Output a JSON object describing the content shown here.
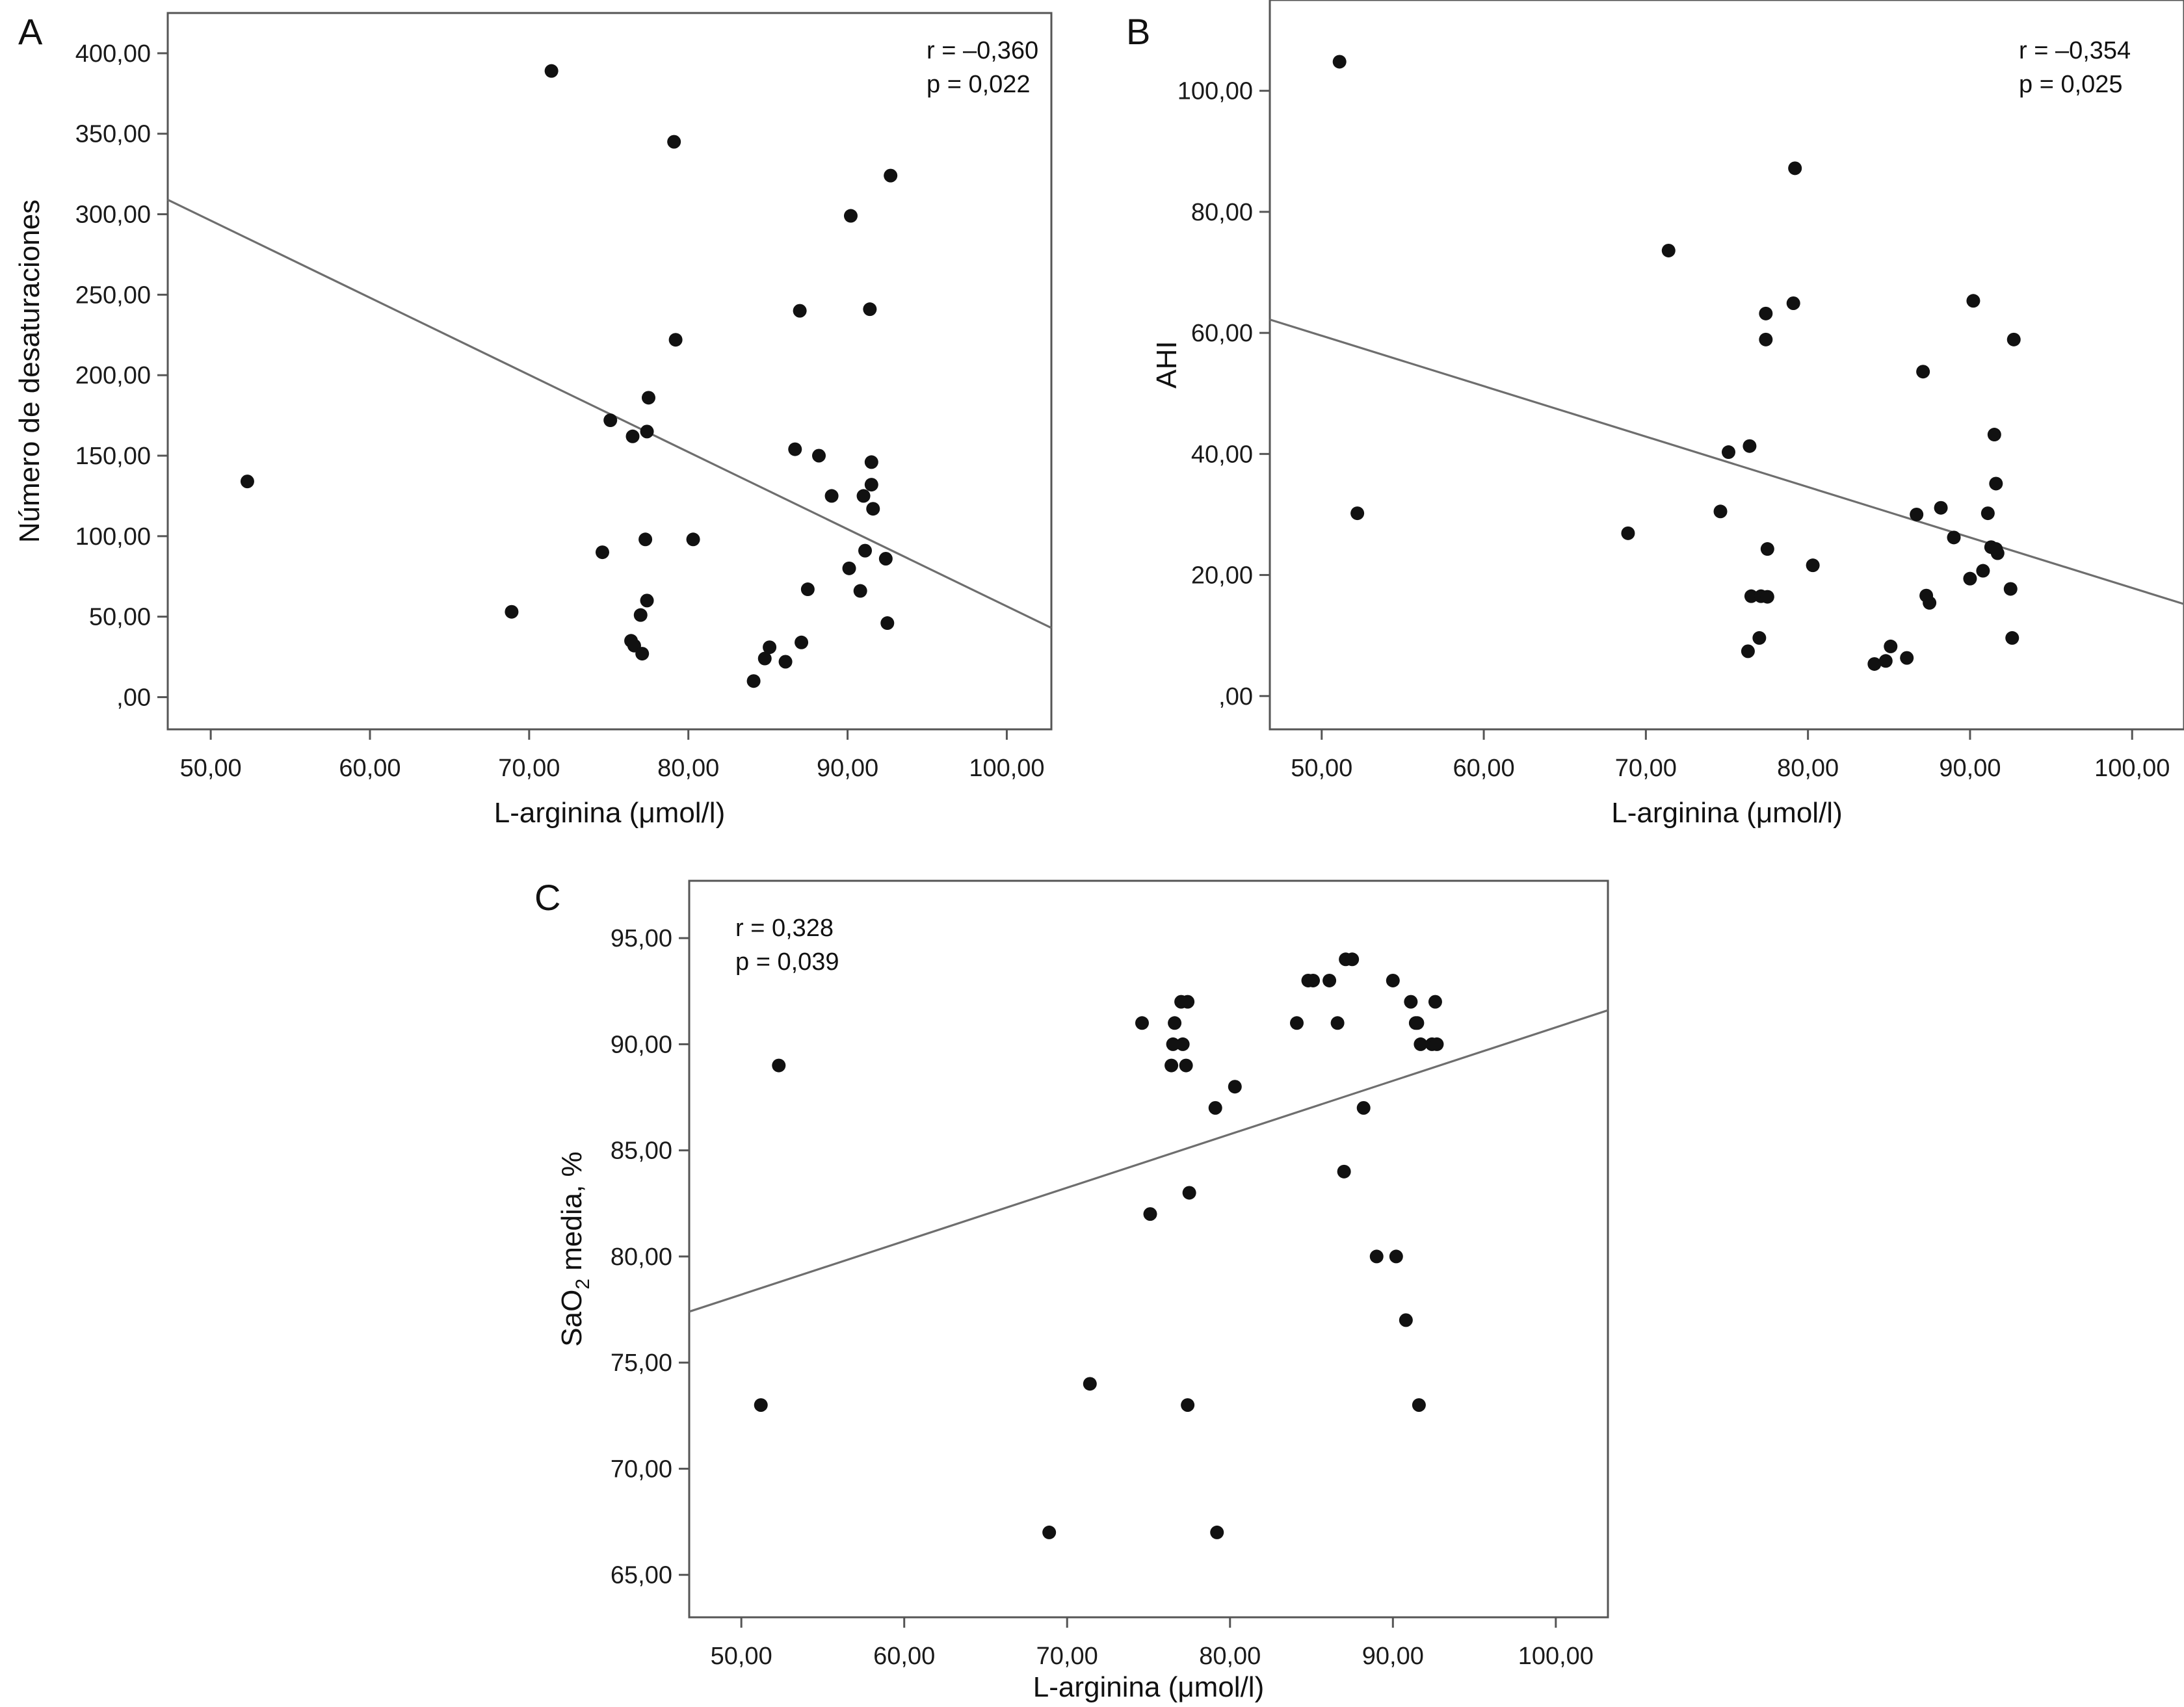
{
  "chart_data": [
    {
      "panel": "A",
      "type": "scatter",
      "xlabel": "L-arginina (μmol/l)",
      "ylabel": "Número de desaturaciones",
      "xlim": [
        47.3,
        102.8
      ],
      "ylim": [
        -20,
        425
      ],
      "xticks": [
        50,
        60,
        70,
        80,
        90,
        100
      ],
      "yticks": [
        0,
        50,
        100,
        150,
        200,
        250,
        300,
        350,
        400
      ],
      "xtick_labels": [
        "50,00",
        "60,00",
        "70,00",
        "80,00",
        "90,00",
        "100,00"
      ],
      "ytick_labels": [
        ",00",
        "50,00",
        "100,00",
        "150,00",
        "200,00",
        "250,00",
        "300,00",
        "350,00",
        "400,00"
      ],
      "stats": {
        "r": "r = –0,360",
        "p": "p = 0,022"
      },
      "fit_line": {
        "x": [
          47.3,
          102.8
        ],
        "y": [
          309,
          43
        ]
      },
      "points": {
        "x": [
          52.3,
          68.9,
          71.4,
          74.6,
          75.1,
          76.4,
          76.5,
          76.6,
          77.0,
          77.1,
          77.3,
          77.4,
          77.5,
          77.4,
          79.1,
          79.2,
          80.3,
          84.1,
          84.8,
          85.1,
          86.1,
          86.7,
          87.0,
          87.1,
          87.5,
          88.2,
          89.0,
          90.1,
          90.2,
          90.8,
          91.0,
          91.1,
          91.4,
          91.5,
          91.5,
          91.6,
          92.4,
          92.5,
          92.7
        ],
        "y": [
          134,
          53,
          389,
          90,
          172,
          35,
          162,
          32,
          51,
          27,
          98,
          60,
          186,
          165,
          345,
          222,
          98,
          10,
          24,
          31,
          22,
          154,
          240,
          34,
          67,
          150,
          125,
          80,
          299,
          66,
          125,
          91,
          241,
          146,
          132,
          117,
          86,
          46,
          324
        ]
      }
    },
    {
      "panel": "B",
      "type": "scatter",
      "xlabel": "L-arginina (μmol/l)",
      "ylabel": "AHI",
      "xlim": [
        46.8,
        103.2
      ],
      "ylim": [
        -5.5,
        115
      ],
      "xticks": [
        50,
        60,
        70,
        80,
        90,
        100
      ],
      "yticks": [
        0,
        20,
        40,
        60,
        80,
        100
      ],
      "xtick_labels": [
        "50,00",
        "60,00",
        "70,00",
        "80,00",
        "90,00",
        "100,00"
      ],
      "ytick_labels": [
        ",00",
        "20,00",
        "40,00",
        "60,00",
        "80,00",
        "100,00"
      ],
      "stats": {
        "r": "r = –0,354",
        "p": "p = 0,025"
      },
      "fit_line": {
        "x": [
          46.8,
          103.2
        ],
        "y": [
          62.2,
          15.2
        ]
      },
      "points": {
        "x": [
          51.1,
          52.2,
          68.9,
          71.4,
          74.6,
          75.1,
          76.3,
          76.4,
          76.5,
          77.0,
          77.1,
          77.4,
          77.4,
          77.5,
          77.5,
          79.1,
          79.2,
          80.3,
          84.1,
          84.8,
          85.1,
          86.1,
          86.7,
          87.1,
          87.3,
          87.5,
          88.2,
          89.0,
          90.0,
          90.2,
          90.8,
          91.1,
          91.3,
          91.5,
          91.6,
          91.7,
          91.6,
          92.5,
          92.6,
          92.7
        ],
        "y": [
          104.8,
          30.2,
          26.9,
          73.6,
          30.5,
          40.3,
          7.4,
          41.3,
          16.5,
          9.6,
          16.5,
          63.2,
          58.9,
          24.3,
          16.4,
          64.9,
          87.2,
          21.6,
          5.3,
          5.8,
          8.2,
          6.3,
          30.0,
          53.6,
          16.6,
          15.4,
          31.1,
          26.2,
          19.4,
          65.3,
          20.7,
          30.2,
          24.6,
          43.2,
          35.1,
          23.6,
          24.3,
          17.7,
          9.6,
          58.9
        ]
      }
    },
    {
      "panel": "C",
      "type": "scatter",
      "xlabel": "L-arginina (μmol/l)",
      "ylabel": "SaO2 media, %",
      "ylabel_parts": {
        "pre": "SaO",
        "sub": "2",
        "post": " media, %"
      },
      "xlim": [
        46.8,
        103.2
      ],
      "ylim": [
        63.0,
        97.7
      ],
      "xticks": [
        50,
        60,
        70,
        80,
        90,
        100
      ],
      "yticks": [
        65,
        70,
        75,
        80,
        85,
        90,
        95
      ],
      "xtick_labels": [
        "50,00",
        "60,00",
        "70,00",
        "80,00",
        "90,00",
        "100,00"
      ],
      "ytick_labels": [
        "65,00",
        "70,00",
        "75,00",
        "80,00",
        "85,00",
        "90,00",
        "95,00"
      ],
      "stats": {
        "r": "r = 0,328",
        "p": "p = 0,039"
      },
      "fit_line": {
        "x": [
          46.8,
          103.2
        ],
        "y": [
          77.4,
          91.6
        ]
      },
      "points": {
        "x": [
          51.2,
          52.3,
          68.9,
          71.4,
          74.6,
          75.1,
          76.4,
          76.5,
          76.6,
          77.0,
          77.1,
          77.3,
          77.4,
          77.4,
          77.5,
          79.1,
          79.2,
          80.3,
          84.1,
          84.8,
          85.1,
          86.1,
          86.6,
          87.0,
          87.1,
          87.5,
          88.2,
          89.0,
          90.0,
          90.2,
          90.8,
          91.1,
          91.4,
          91.5,
          91.6,
          91.7,
          92.4,
          92.6,
          92.7
        ],
        "y": [
          73,
          89,
          67,
          74,
          91,
          82,
          89,
          90,
          91,
          92,
          90,
          89,
          73,
          92,
          83,
          87,
          67,
          88,
          91,
          93,
          93,
          93,
          91,
          84,
          94,
          94,
          87,
          80,
          93,
          80,
          77,
          92,
          91,
          91,
          73,
          90,
          90,
          92,
          90
        ]
      }
    }
  ]
}
